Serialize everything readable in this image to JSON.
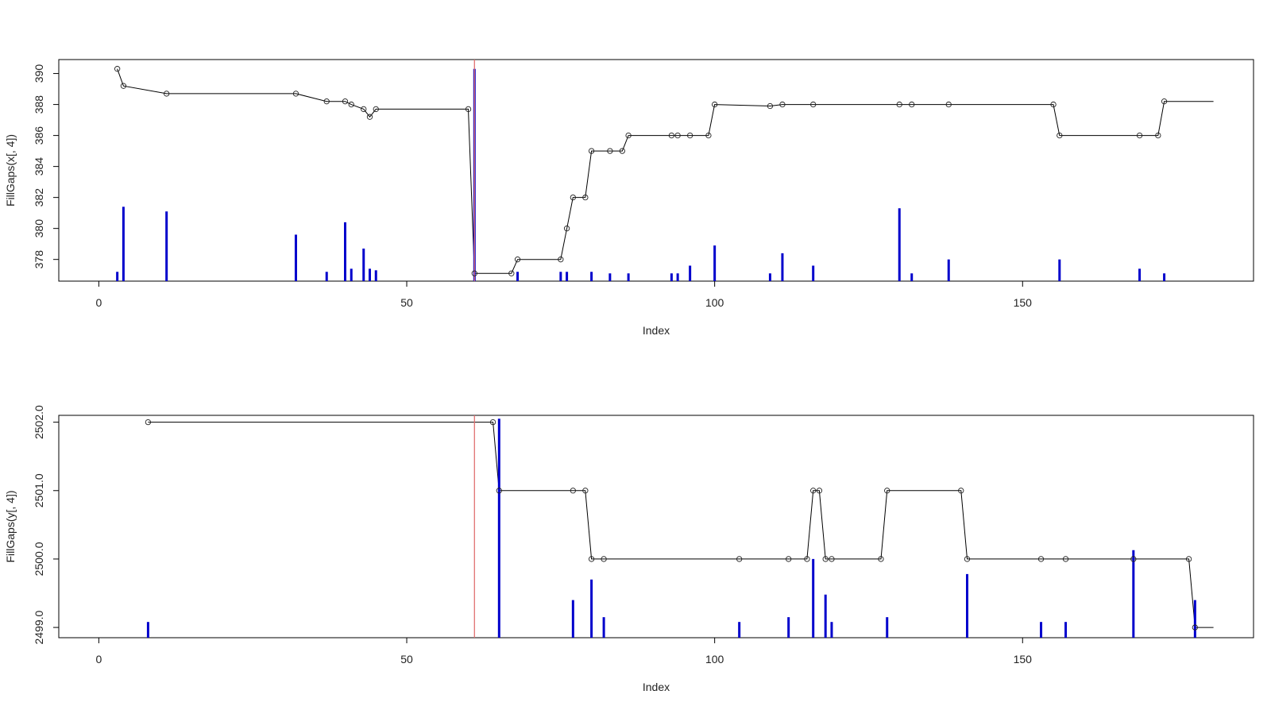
{
  "chart_data": [
    {
      "type": "line",
      "xlabel": "Index",
      "ylabel": "FillGaps(x[, 4])",
      "xlim": [
        -6.5,
        187.5
      ],
      "ylim": [
        376.6,
        390.9
      ],
      "xticks": [
        "0",
        "50",
        "100",
        "150"
      ],
      "yticks": [
        "378",
        "380",
        "382",
        "384",
        "386",
        "388",
        "390"
      ],
      "vline_x": 61,
      "spike_base": 376.6,
      "line_end_x": 181,
      "points": [
        [
          3,
          390.3
        ],
        [
          4,
          389.2
        ],
        [
          11,
          388.7
        ],
        [
          32,
          388.7
        ],
        [
          37,
          388.2
        ],
        [
          40,
          388.2
        ],
        [
          41,
          388.0
        ],
        [
          43,
          387.7
        ],
        [
          44,
          387.2
        ],
        [
          45,
          387.7
        ],
        [
          60,
          387.7
        ],
        [
          61,
          377.1
        ],
        [
          67,
          377.1
        ],
        [
          68,
          378.0
        ],
        [
          75,
          378.0
        ],
        [
          76,
          380.0
        ],
        [
          77,
          382.0
        ],
        [
          79,
          382.0
        ],
        [
          80,
          385.0
        ],
        [
          83,
          385.0
        ],
        [
          85,
          385.0
        ],
        [
          86,
          386.0
        ],
        [
          93,
          386.0
        ],
        [
          94,
          386.0
        ],
        [
          96,
          386.0
        ],
        [
          99,
          386.0
        ],
        [
          100,
          388.0
        ],
        [
          109,
          387.9
        ],
        [
          111,
          388.0
        ],
        [
          116,
          388.0
        ],
        [
          130,
          388.0
        ],
        [
          132,
          388.0
        ],
        [
          138,
          388.0
        ],
        [
          155,
          388.0
        ],
        [
          156,
          386.0
        ],
        [
          169,
          386.0
        ],
        [
          172,
          386.0
        ],
        [
          173,
          388.2
        ]
      ],
      "spikes": [
        [
          3,
          377.2
        ],
        [
          4,
          381.4
        ],
        [
          11,
          381.1
        ],
        [
          32,
          379.6
        ],
        [
          37,
          377.2
        ],
        [
          40,
          380.4
        ],
        [
          41,
          377.4
        ],
        [
          43,
          378.7
        ],
        [
          44,
          377.4
        ],
        [
          45,
          377.3
        ],
        [
          61,
          390.3
        ],
        [
          68,
          377.2
        ],
        [
          75,
          377.2
        ],
        [
          76,
          377.2
        ],
        [
          80,
          377.2
        ],
        [
          83,
          377.1
        ],
        [
          86,
          377.1
        ],
        [
          93,
          377.1
        ],
        [
          94,
          377.1
        ],
        [
          96,
          377.6
        ],
        [
          100,
          378.9
        ],
        [
          109,
          377.1
        ],
        [
          111,
          378.4
        ],
        [
          116,
          377.6
        ],
        [
          130,
          381.3
        ],
        [
          132,
          377.1
        ],
        [
          138,
          378.0
        ],
        [
          156,
          378.0
        ],
        [
          169,
          377.4
        ],
        [
          173,
          377.1
        ]
      ]
    },
    {
      "type": "line",
      "xlabel": "Index",
      "ylabel": "FillGaps(y[, 4])",
      "xlim": [
        -6.5,
        187.5
      ],
      "ylim": [
        2498.85,
        2502.1
      ],
      "xticks": [
        "0",
        "50",
        "100",
        "150"
      ],
      "yticks": [
        "2499.0",
        "2500.0",
        "2501.0",
        "2502.0"
      ],
      "vline_x": 61,
      "spike_base": 2498.85,
      "line_end_x": 181,
      "points": [
        [
          8,
          2502.0
        ],
        [
          64,
          2502.0
        ],
        [
          65,
          2501.0
        ],
        [
          77,
          2501.0
        ],
        [
          79,
          2501.0
        ],
        [
          80,
          2500.0
        ],
        [
          82,
          2500.0
        ],
        [
          104,
          2500.0
        ],
        [
          112,
          2500.0
        ],
        [
          115,
          2500.0
        ],
        [
          116,
          2501.0
        ],
        [
          117,
          2501.0
        ],
        [
          118,
          2500.0
        ],
        [
          119,
          2500.0
        ],
        [
          127,
          2500.0
        ],
        [
          128,
          2501.0
        ],
        [
          140,
          2501.0
        ],
        [
          141,
          2500.0
        ],
        [
          153,
          2500.0
        ],
        [
          157,
          2500.0
        ],
        [
          168,
          2500.0
        ],
        [
          177,
          2500.0
        ],
        [
          178,
          2499.0
        ]
      ],
      "spikes": [
        [
          8,
          2499.08
        ],
        [
          65,
          2502.05
        ],
        [
          77,
          2499.4
        ],
        [
          80,
          2499.7
        ],
        [
          82,
          2499.15
        ],
        [
          104,
          2499.08
        ],
        [
          112,
          2499.15
        ],
        [
          116,
          2500.0
        ],
        [
          118,
          2499.48
        ],
        [
          119,
          2499.08
        ],
        [
          128,
          2499.15
        ],
        [
          141,
          2499.78
        ],
        [
          153,
          2499.08
        ],
        [
          157,
          2499.08
        ],
        [
          168,
          2500.13
        ],
        [
          178,
          2499.4
        ]
      ]
    }
  ],
  "colors": {
    "line": "#000000",
    "marker": "#222222",
    "spike": "#0000cc",
    "vline": "#e07070",
    "frame": "#000000"
  }
}
